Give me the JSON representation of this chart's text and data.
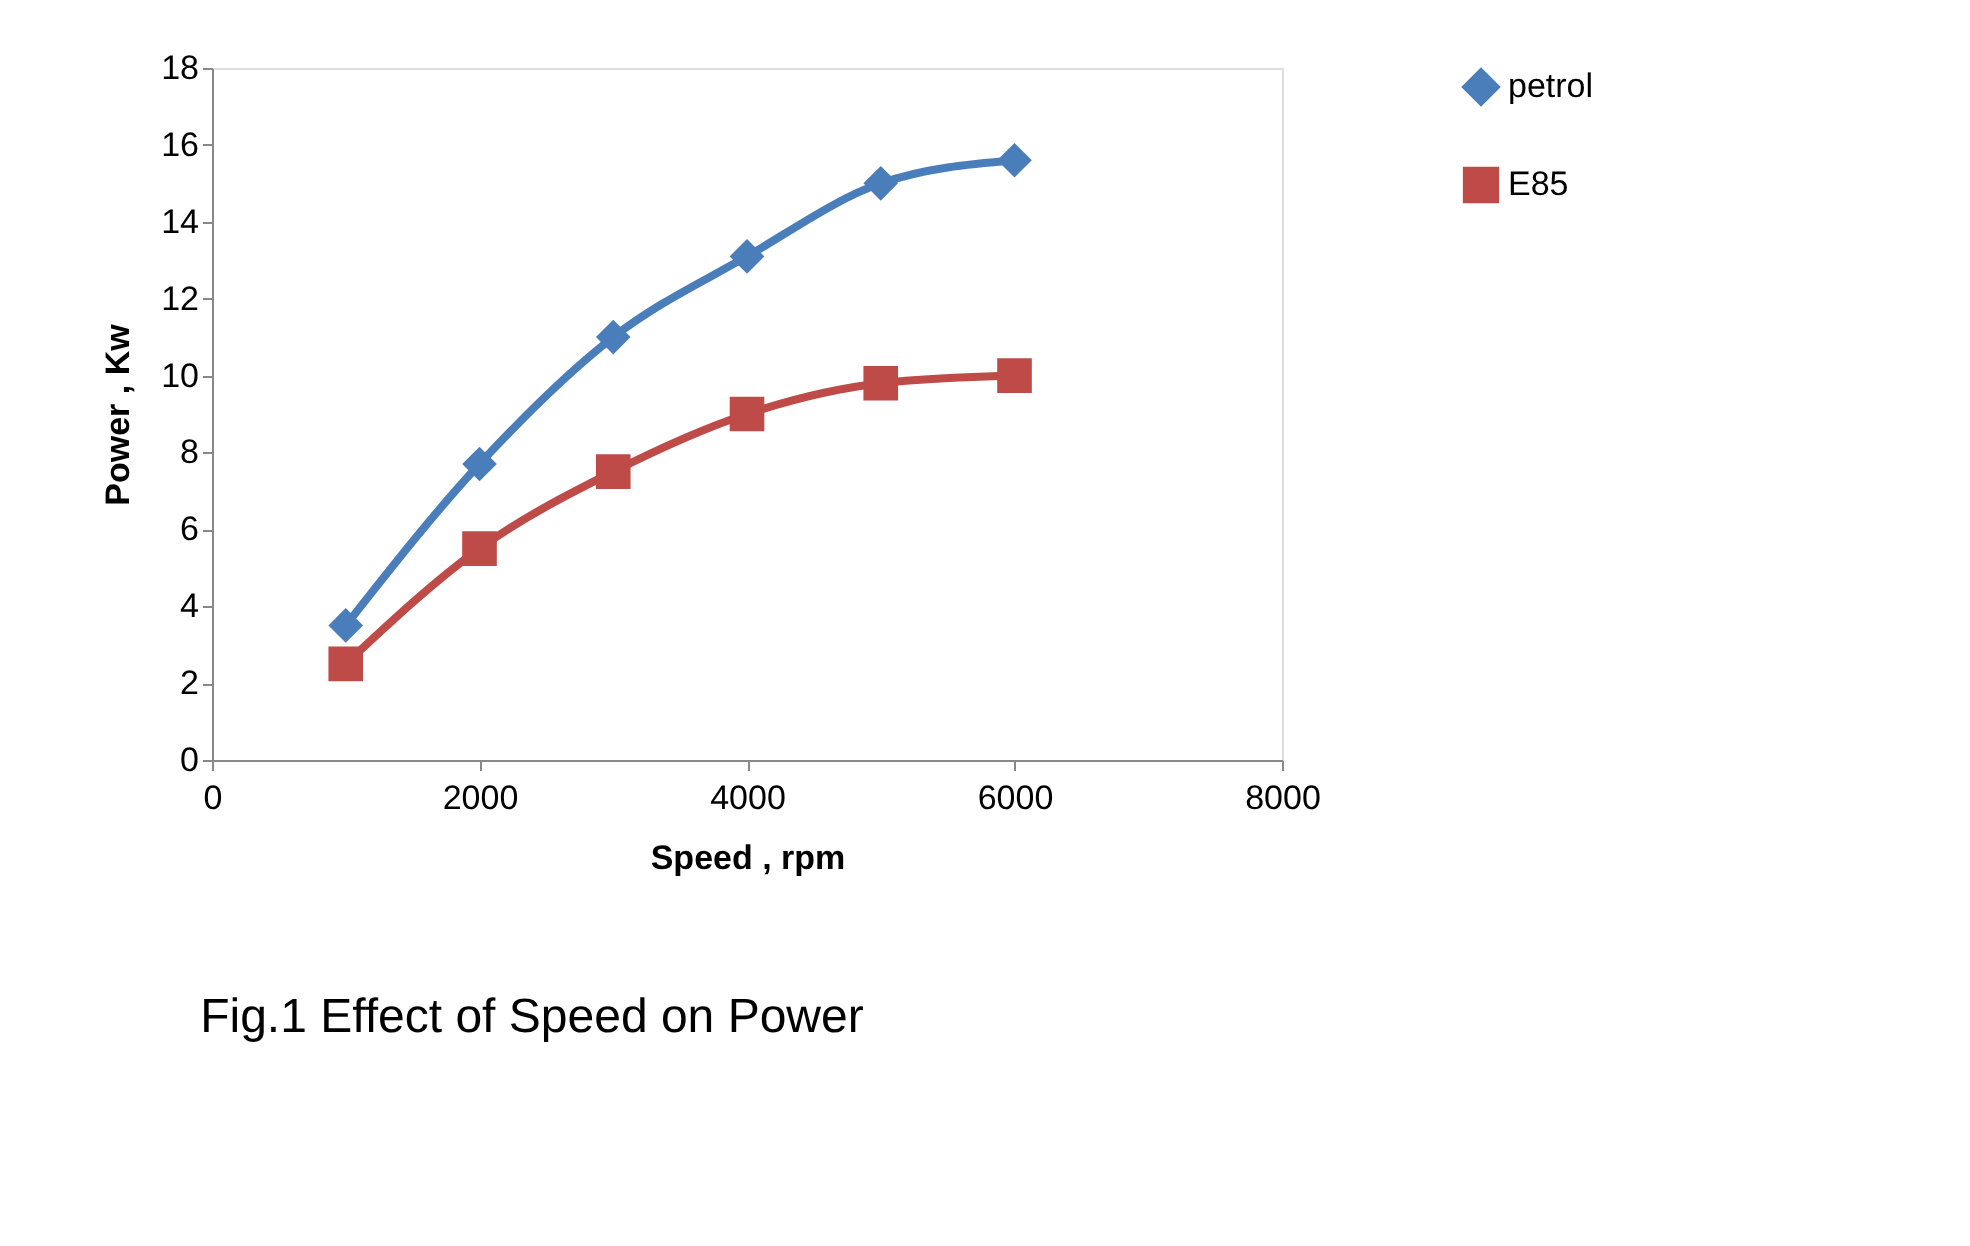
{
  "chart_data": {
    "type": "line",
    "title": "Fig.1 Effect of Speed on Power",
    "xlabel": "Speed , rpm",
    "ylabel": "Power , Kw",
    "x": [
      1000,
      2000,
      3000,
      4000,
      5000,
      6000
    ],
    "series": [
      {
        "name": "petrol",
        "color": "#4a7ebb",
        "marker": "diamond",
        "values": [
          3.5,
          7.7,
          11,
          13.1,
          15,
          15.6
        ]
      },
      {
        "name": "E85",
        "color": "#be4b48",
        "marker": "square",
        "values": [
          2.5,
          5.5,
          7.5,
          9,
          9.8,
          10
        ]
      }
    ],
    "xlim": [
      0,
      8000
    ],
    "xticks": [
      0,
      2000,
      4000,
      6000,
      8000
    ],
    "ylim": [
      0,
      18
    ],
    "yticks": [
      0,
      2,
      4,
      6,
      8,
      10,
      12,
      14,
      16,
      18
    ],
    "grid": false,
    "legend": "right",
    "line_style": "solid"
  }
}
